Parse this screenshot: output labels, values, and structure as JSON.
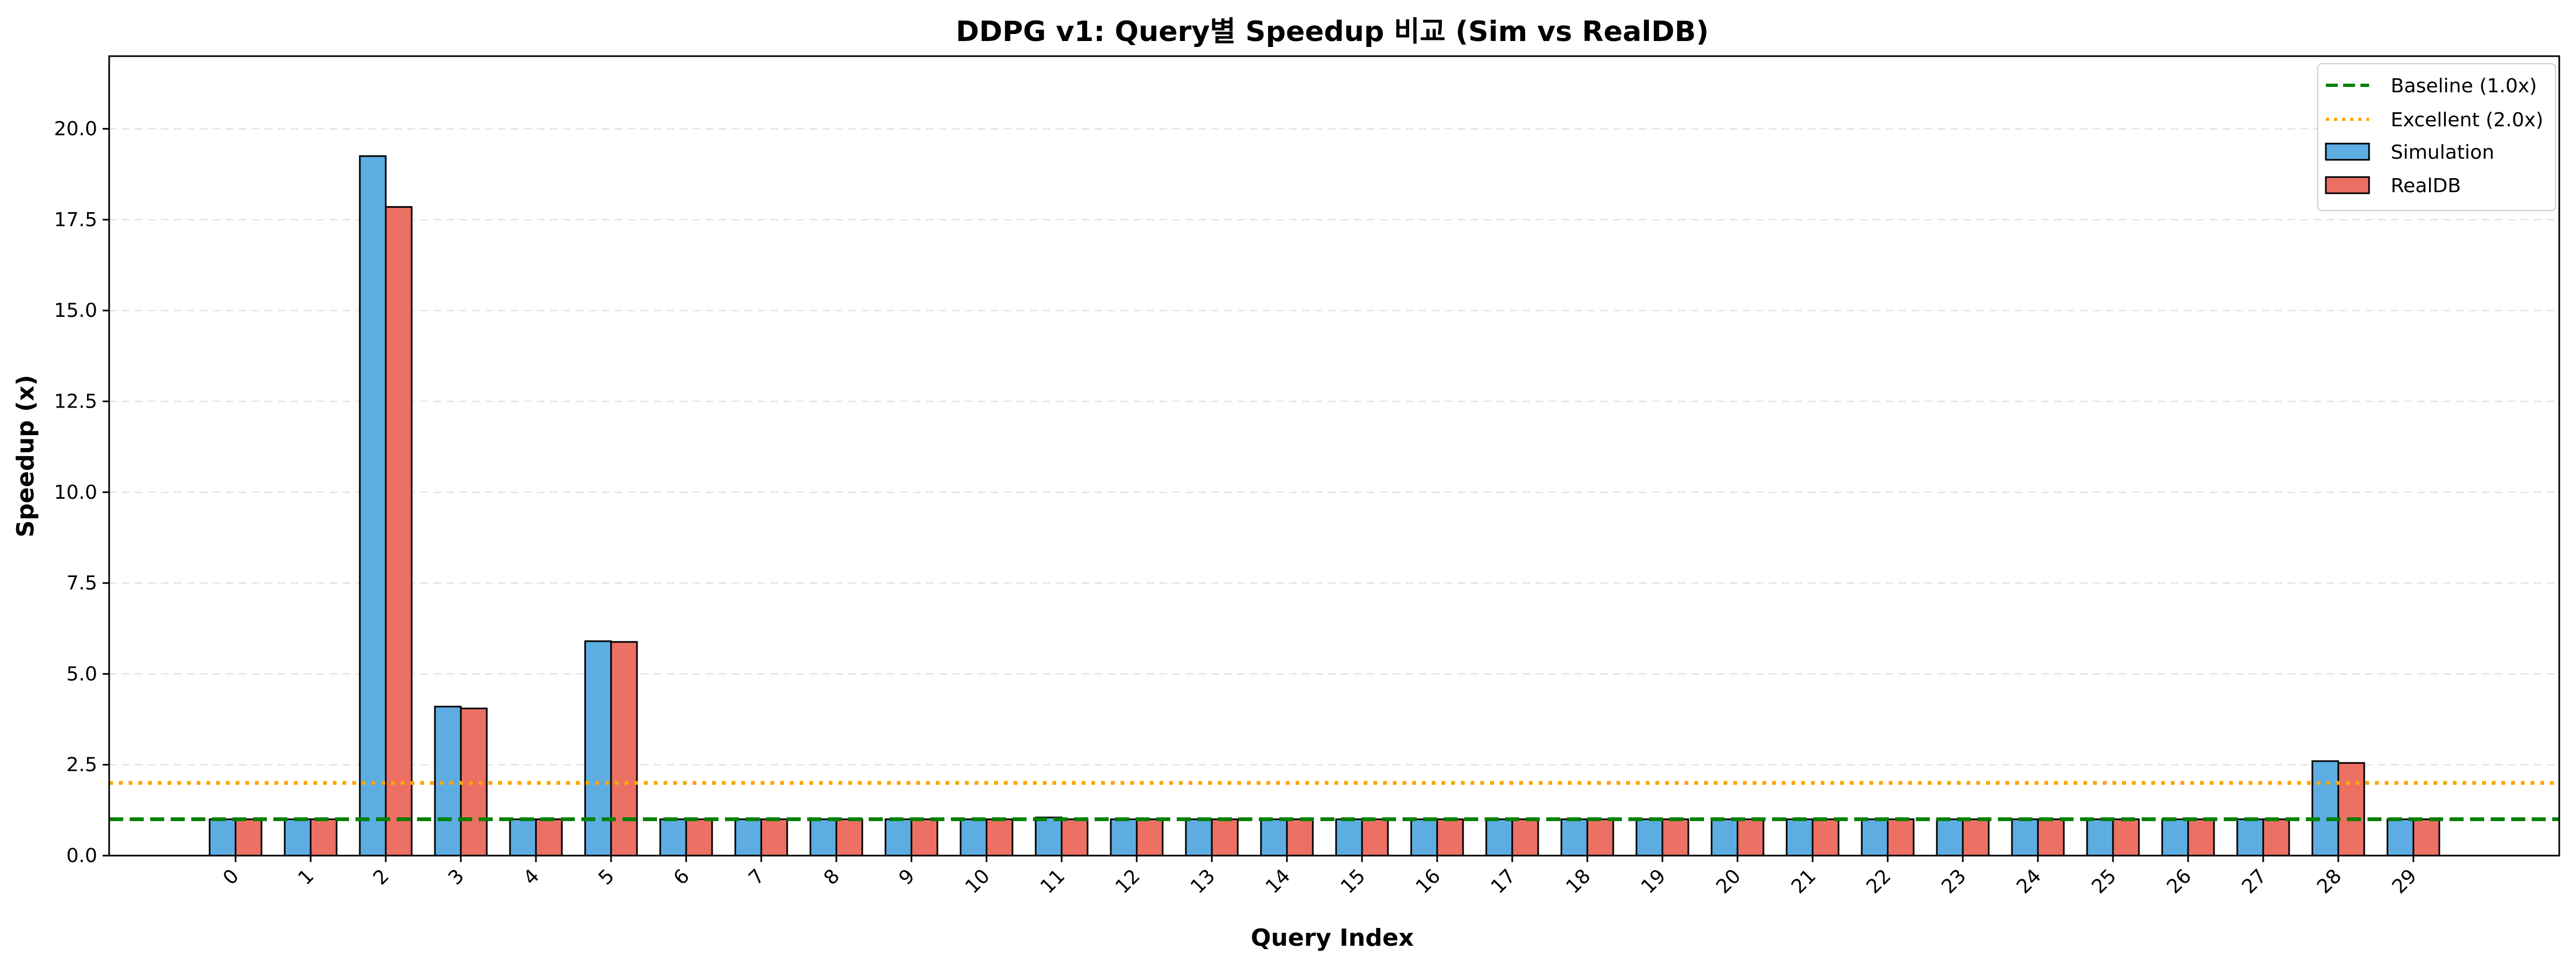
{
  "chart_data": {
    "type": "bar",
    "title": "DDPG v1: Query별 Speedup 비교 (Sim vs RealDB)",
    "xlabel": "Query Index",
    "ylabel": "Speedup (x)",
    "ylim": [
      0,
      22
    ],
    "yticks": [
      "0.0",
      "2.5",
      "5.0",
      "7.5",
      "10.0",
      "12.5",
      "15.0",
      "17.5",
      "20.0"
    ],
    "categories": [
      "0",
      "1",
      "2",
      "3",
      "4",
      "5",
      "6",
      "7",
      "8",
      "9",
      "10",
      "11",
      "12",
      "13",
      "14",
      "15",
      "16",
      "17",
      "18",
      "19",
      "20",
      "21",
      "22",
      "23",
      "24",
      "25",
      "26",
      "27",
      "28",
      "29"
    ],
    "series": [
      {
        "name": "Simulation",
        "color": "#5DADE2",
        "values": [
          1.0,
          1.0,
          19.25,
          4.1,
          1.0,
          5.9,
          1.0,
          1.0,
          1.0,
          1.0,
          1.0,
          1.05,
          1.0,
          1.0,
          1.0,
          1.0,
          1.0,
          1.0,
          1.0,
          1.0,
          1.0,
          1.0,
          1.0,
          1.0,
          1.0,
          1.0,
          1.0,
          1.0,
          2.6,
          1.0
        ]
      },
      {
        "name": "RealDB",
        "color": "#EC7063",
        "values": [
          1.0,
          1.0,
          17.85,
          4.05,
          1.0,
          5.88,
          1.0,
          1.0,
          1.0,
          1.0,
          1.0,
          1.0,
          1.0,
          1.0,
          1.0,
          1.0,
          1.0,
          1.0,
          1.0,
          1.0,
          1.0,
          1.0,
          1.0,
          1.0,
          1.0,
          1.0,
          1.0,
          1.0,
          2.55,
          1.0
        ]
      }
    ],
    "reference_lines": [
      {
        "name": "Baseline (1.0x)",
        "value": 1.0,
        "color": "#008000",
        "style": "dashed"
      },
      {
        "name": "Excellent (2.0x)",
        "value": 2.0,
        "color": "#FFA500",
        "style": "dotted"
      }
    ],
    "grid": "y-dashed",
    "legend_position": "top-right"
  }
}
